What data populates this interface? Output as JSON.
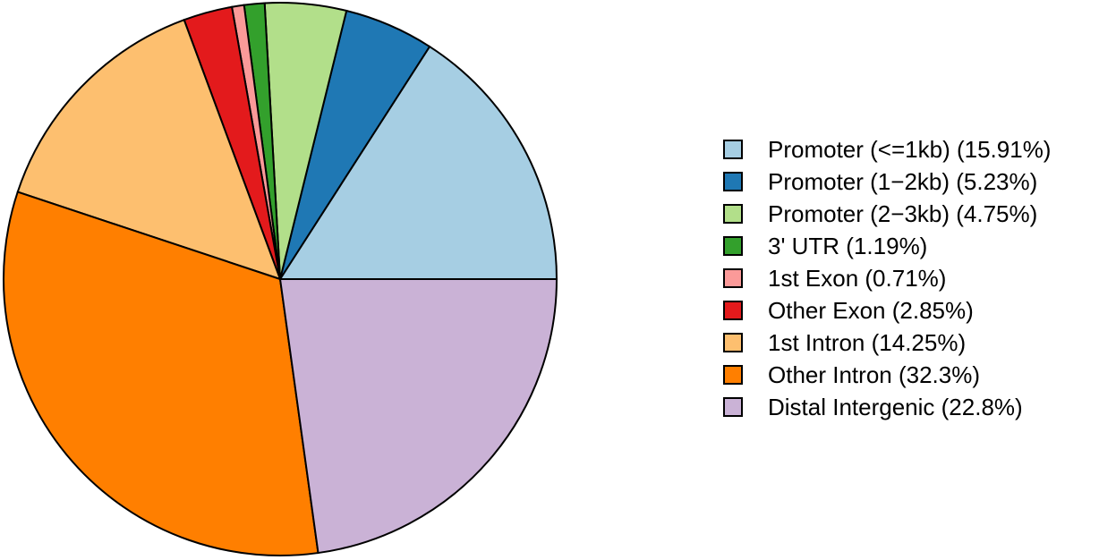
{
  "chart_data": {
    "type": "pie",
    "title": "",
    "categories": [
      "Promoter (<=1kb)",
      "Promoter (1−2kb)",
      "Promoter (2−3kb)",
      "3' UTR",
      "1st Exon",
      "Other Exon",
      "1st Intron",
      "Other Intron",
      "Distal Intergenic"
    ],
    "values": [
      15.91,
      5.23,
      4.75,
      1.19,
      0.71,
      2.85,
      14.25,
      32.3,
      22.8
    ],
    "unit": "%",
    "colors": [
      "#A6CEE3",
      "#1F78B4",
      "#B2DF8A",
      "#33A02C",
      "#FB9A99",
      "#E31A1C",
      "#FDBF6F",
      "#FF7F00",
      "#CAB2D6"
    ],
    "legend_labels": [
      "Promoter (<=1kb) (15.91%)",
      "Promoter (1−2kb) (5.23%)",
      "Promoter (2−3kb) (4.75%)",
      "3' UTR (1.19%)",
      "1st Exon (0.71%)",
      "Other Exon (2.85%)",
      "1st Intron (14.25%)",
      "Other Intron (32.3%)",
      "Distal Intergenic (22.8%)"
    ],
    "legend_position": "right",
    "start_angle_deg": 0,
    "direction": "counterclockwise",
    "stroke": {
      "color": "#000000",
      "width": 2
    },
    "background": "#FFFFFF"
  }
}
